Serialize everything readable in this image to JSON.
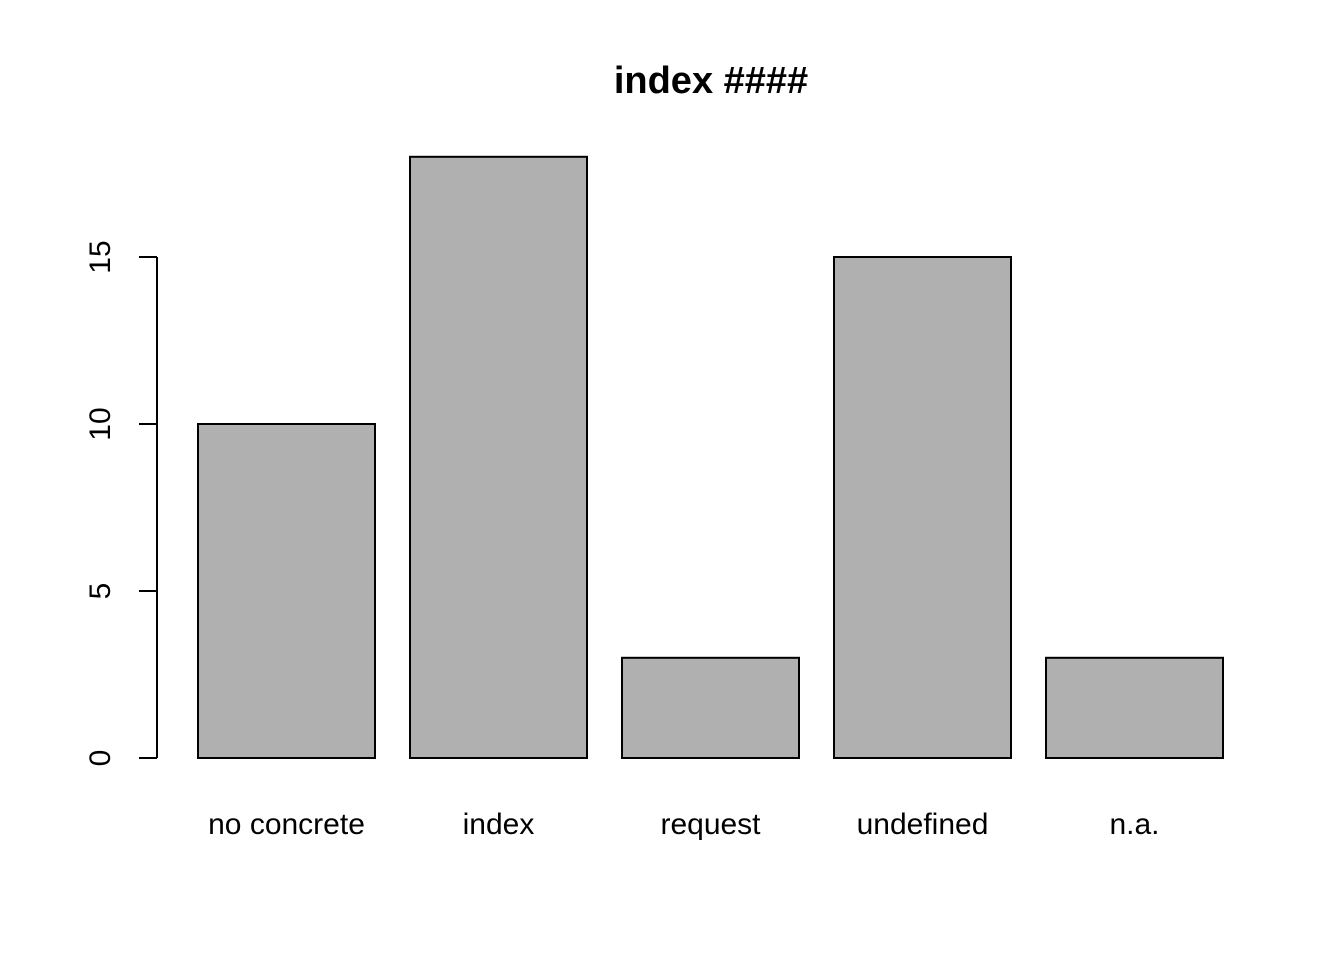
{
  "chart_data": {
    "type": "bar",
    "title": "index ####",
    "xlabel": "",
    "ylabel": "",
    "categories": [
      "no concrete",
      "index",
      "request",
      "undefined",
      "n.a."
    ],
    "values": [
      10,
      18,
      3,
      15,
      3
    ],
    "ylim": [
      0,
      18
    ],
    "yticks": [
      0,
      5,
      10,
      15
    ],
    "ytick_labels": [
      "0",
      "5",
      "10",
      "15"
    ],
    "grid": false,
    "legend": "none",
    "bar_fill": "#b0b0b0",
    "bar_stroke": "#000000"
  }
}
